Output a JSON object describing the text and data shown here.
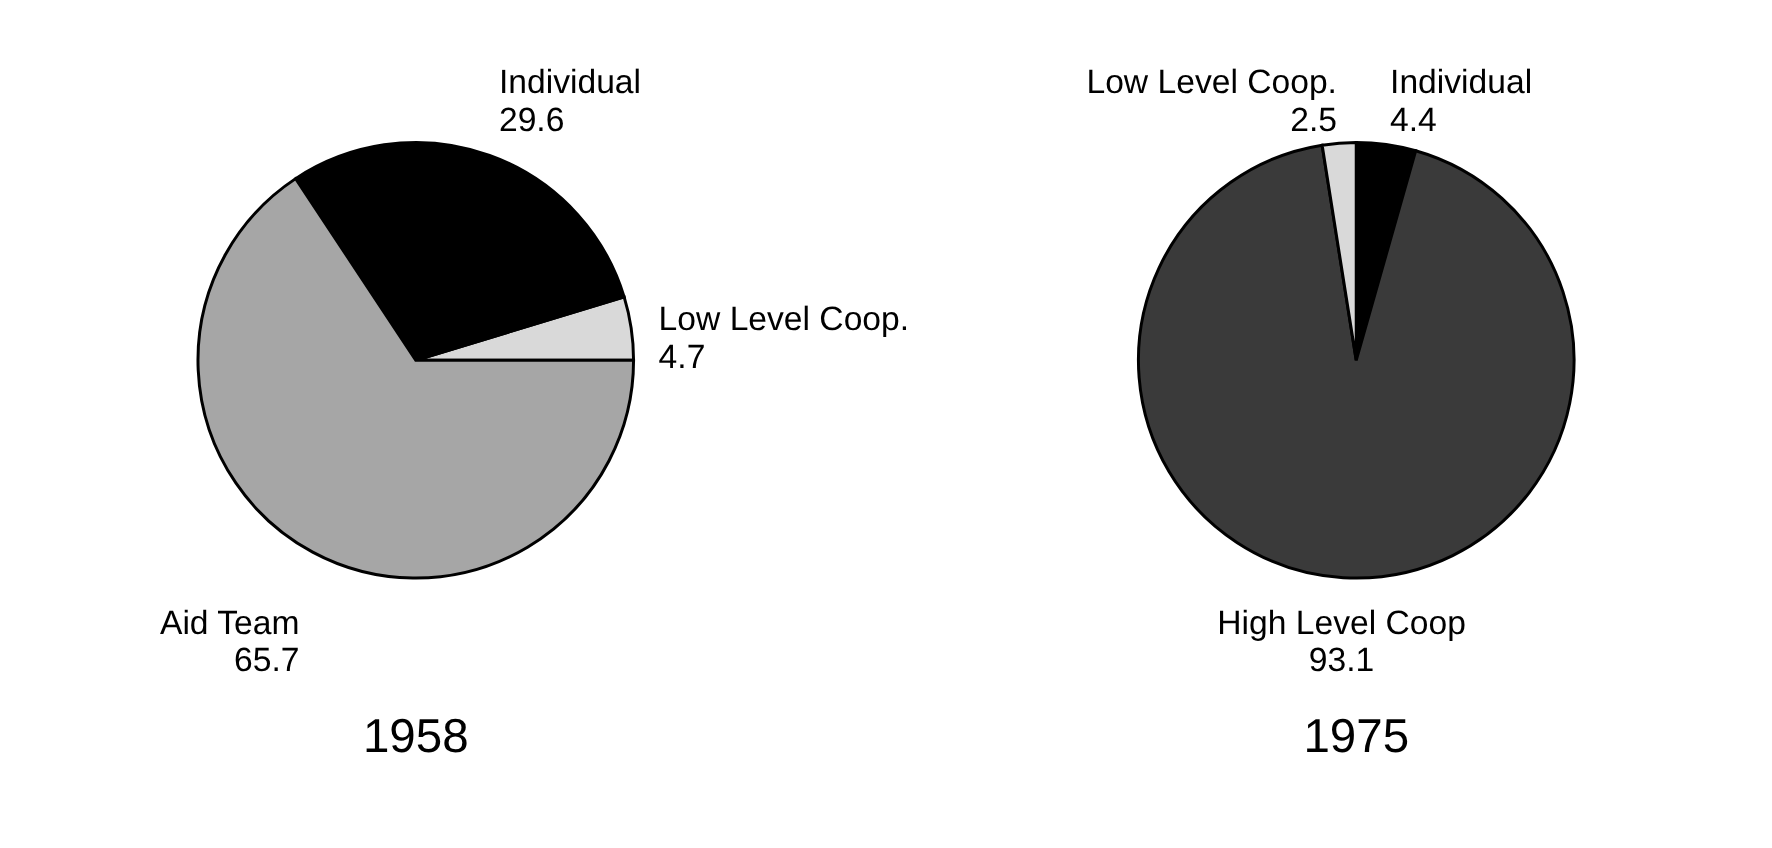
{
  "chart_data": [
    {
      "type": "pie",
      "title": "1958",
      "categories": [
        "Low Level Coop.",
        "Individual",
        "Aid Team"
      ],
      "values": [
        4.7,
        29.6,
        65.7
      ],
      "colors": [
        "#d9d9d9",
        "#000000",
        "#a6a6a6"
      ],
      "data_labels": true
    },
    {
      "type": "pie",
      "title": "1975",
      "categories": [
        "Individual",
        "High Level Coop",
        "Low Level Coop."
      ],
      "values": [
        4.4,
        93.1,
        2.5
      ],
      "colors": [
        "#000000",
        "#3a3a3a",
        "#d9d9d9"
      ],
      "data_labels": true
    }
  ]
}
